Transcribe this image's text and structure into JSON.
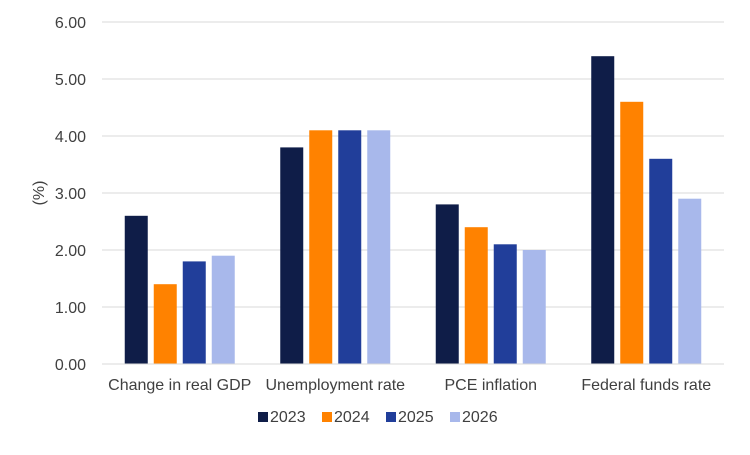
{
  "chart_data": {
    "type": "bar",
    "title": "",
    "xlabel": "",
    "ylabel": "(%)",
    "ylim": [
      0,
      6
    ],
    "yticks": [
      0,
      1,
      2,
      3,
      4,
      5,
      6
    ],
    "ytick_labels": [
      "0.00",
      "1.00",
      "2.00",
      "3.00",
      "4.00",
      "5.00",
      "6.00"
    ],
    "grid": true,
    "legend_position": "bottom",
    "categories": [
      "Change in real GDP",
      "Unemployment rate",
      "PCE inflation",
      "Federal funds rate"
    ],
    "series": [
      {
        "name": "2023",
        "color": "#0f1d48",
        "values": [
          2.6,
          3.8,
          2.8,
          5.4
        ]
      },
      {
        "name": "2024",
        "color": "#ff8200",
        "values": [
          1.4,
          4.1,
          2.4,
          4.6
        ]
      },
      {
        "name": "2025",
        "color": "#213e9a",
        "values": [
          1.8,
          4.1,
          2.1,
          3.6
        ]
      },
      {
        "name": "2026",
        "color": "#a8b8eb",
        "values": [
          1.9,
          4.1,
          2.0,
          2.9
        ]
      }
    ]
  }
}
